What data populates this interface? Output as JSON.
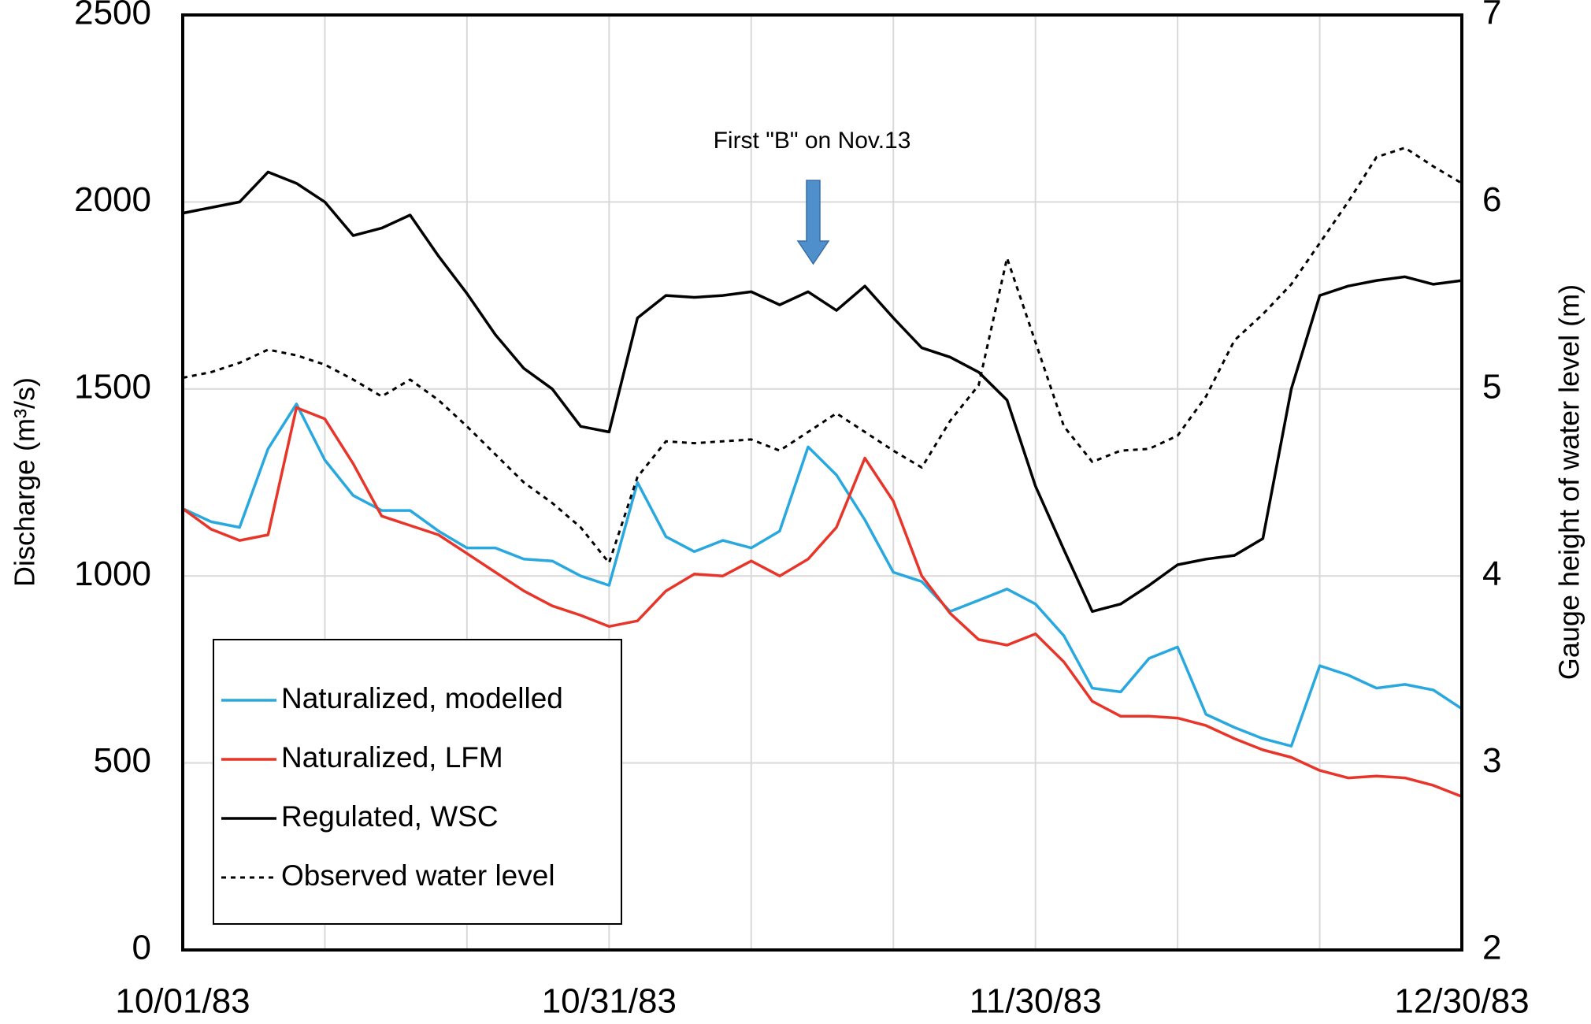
{
  "chart_data": {
    "type": "line",
    "annotation": "First \"B\" on Nov.13",
    "ylabel": "Discharge  (m³/s)",
    "y2label": "Gauge height of water level (m)",
    "x": [
      "10/01/83",
      "10/03/83",
      "10/05/83",
      "10/07/83",
      "10/09/83",
      "10/11/83",
      "10/13/83",
      "10/15/83",
      "10/17/83",
      "10/19/83",
      "10/21/83",
      "10/23/83",
      "10/25/83",
      "10/27/83",
      "10/29/83",
      "10/31/83",
      "11/02/83",
      "11/04/83",
      "11/06/83",
      "11/08/83",
      "11/10/83",
      "11/12/83",
      "11/14/83",
      "11/16/83",
      "11/18/83",
      "11/20/83",
      "11/22/83",
      "11/24/83",
      "11/26/83",
      "11/28/83",
      "11/30/83",
      "12/02/83",
      "12/04/83",
      "12/06/83",
      "12/08/83",
      "12/10/83",
      "12/12/83",
      "12/14/83",
      "12/16/83",
      "12/18/83",
      "12/20/83",
      "12/22/83",
      "12/24/83",
      "12/26/83",
      "12/28/83",
      "12/30/83"
    ],
    "xlim": [
      "10/01/83",
      "12/30/83"
    ],
    "xticks": [
      "10/01/83",
      "10/31/83",
      "11/30/83",
      "12/30/83"
    ],
    "xminorticks": [
      "10/11/83",
      "10/21/83",
      "11/10/83",
      "11/20/83",
      "12/10/83",
      "12/20/83"
    ],
    "ylim": [
      0,
      2500
    ],
    "yticks": [
      0,
      500,
      1000,
      1500,
      2000,
      2500
    ],
    "y2lim": [
      2,
      7
    ],
    "y2ticks": [
      2,
      3,
      4,
      5,
      6,
      7
    ],
    "grid": true,
    "legend": "lower left",
    "series": [
      {
        "name": "Naturalized, modelled",
        "color": "#29a8e0",
        "values": [
          1180,
          1145,
          1130,
          1340,
          1460,
          1310,
          1215,
          1175,
          1175,
          1120,
          1075,
          1075,
          1045,
          1040,
          1000,
          975,
          1250,
          1105,
          1065,
          1095,
          1075,
          1120,
          1345,
          1270,
          1150,
          1010,
          985,
          905,
          935,
          965,
          925,
          840,
          700,
          690,
          780,
          810,
          630,
          595,
          565,
          545,
          760,
          735,
          700,
          710,
          695,
          645
        ]
      },
      {
        "name": "Naturalized, LFM",
        "color": "#e8352a",
        "values": [
          1180,
          1125,
          1095,
          1110,
          1450,
          1420,
          1300,
          1160,
          1135,
          1110,
          1060,
          1010,
          960,
          920,
          895,
          865,
          880,
          960,
          1005,
          1000,
          1040,
          1000,
          1045,
          1130,
          1315,
          1200,
          1000,
          900,
          830,
          815,
          845,
          770,
          665,
          625,
          625,
          620,
          600,
          565,
          535,
          515,
          480,
          460,
          465,
          460,
          440,
          410
        ]
      },
      {
        "name": "Regulated, WSC",
        "color": "#000000",
        "values": [
          1970,
          1985,
          2000,
          2080,
          2050,
          2000,
          1910,
          1930,
          1965,
          1855,
          1755,
          1645,
          1555,
          1500,
          1400,
          1385,
          1690,
          1750,
          1745,
          1750,
          1760,
          1725,
          1760,
          1710,
          1775,
          1690,
          1610,
          1585,
          1545,
          1470,
          1240,
          1070,
          905,
          925,
          975,
          1030,
          1045,
          1055,
          1100,
          1500,
          1750,
          1775,
          1790,
          1800,
          1780,
          1790
        ]
      },
      {
        "name": "Observed water level",
        "color": "#000000",
        "dashed": true,
        "axis": "y2",
        "values": [
          5.06,
          5.09,
          5.14,
          5.21,
          5.18,
          5.13,
          5.05,
          4.96,
          5.05,
          4.94,
          4.8,
          4.65,
          4.5,
          4.39,
          4.26,
          4.07,
          4.53,
          4.72,
          4.71,
          4.72,
          4.73,
          4.67,
          4.77,
          4.87,
          4.77,
          4.67,
          4.58,
          4.83,
          5.02,
          5.7,
          5.25,
          4.8,
          4.61,
          4.67,
          4.68,
          4.75,
          4.96,
          5.26,
          5.4,
          5.56,
          5.78,
          6.0,
          6.24,
          6.29,
          6.19,
          6.1
        ]
      }
    ]
  }
}
